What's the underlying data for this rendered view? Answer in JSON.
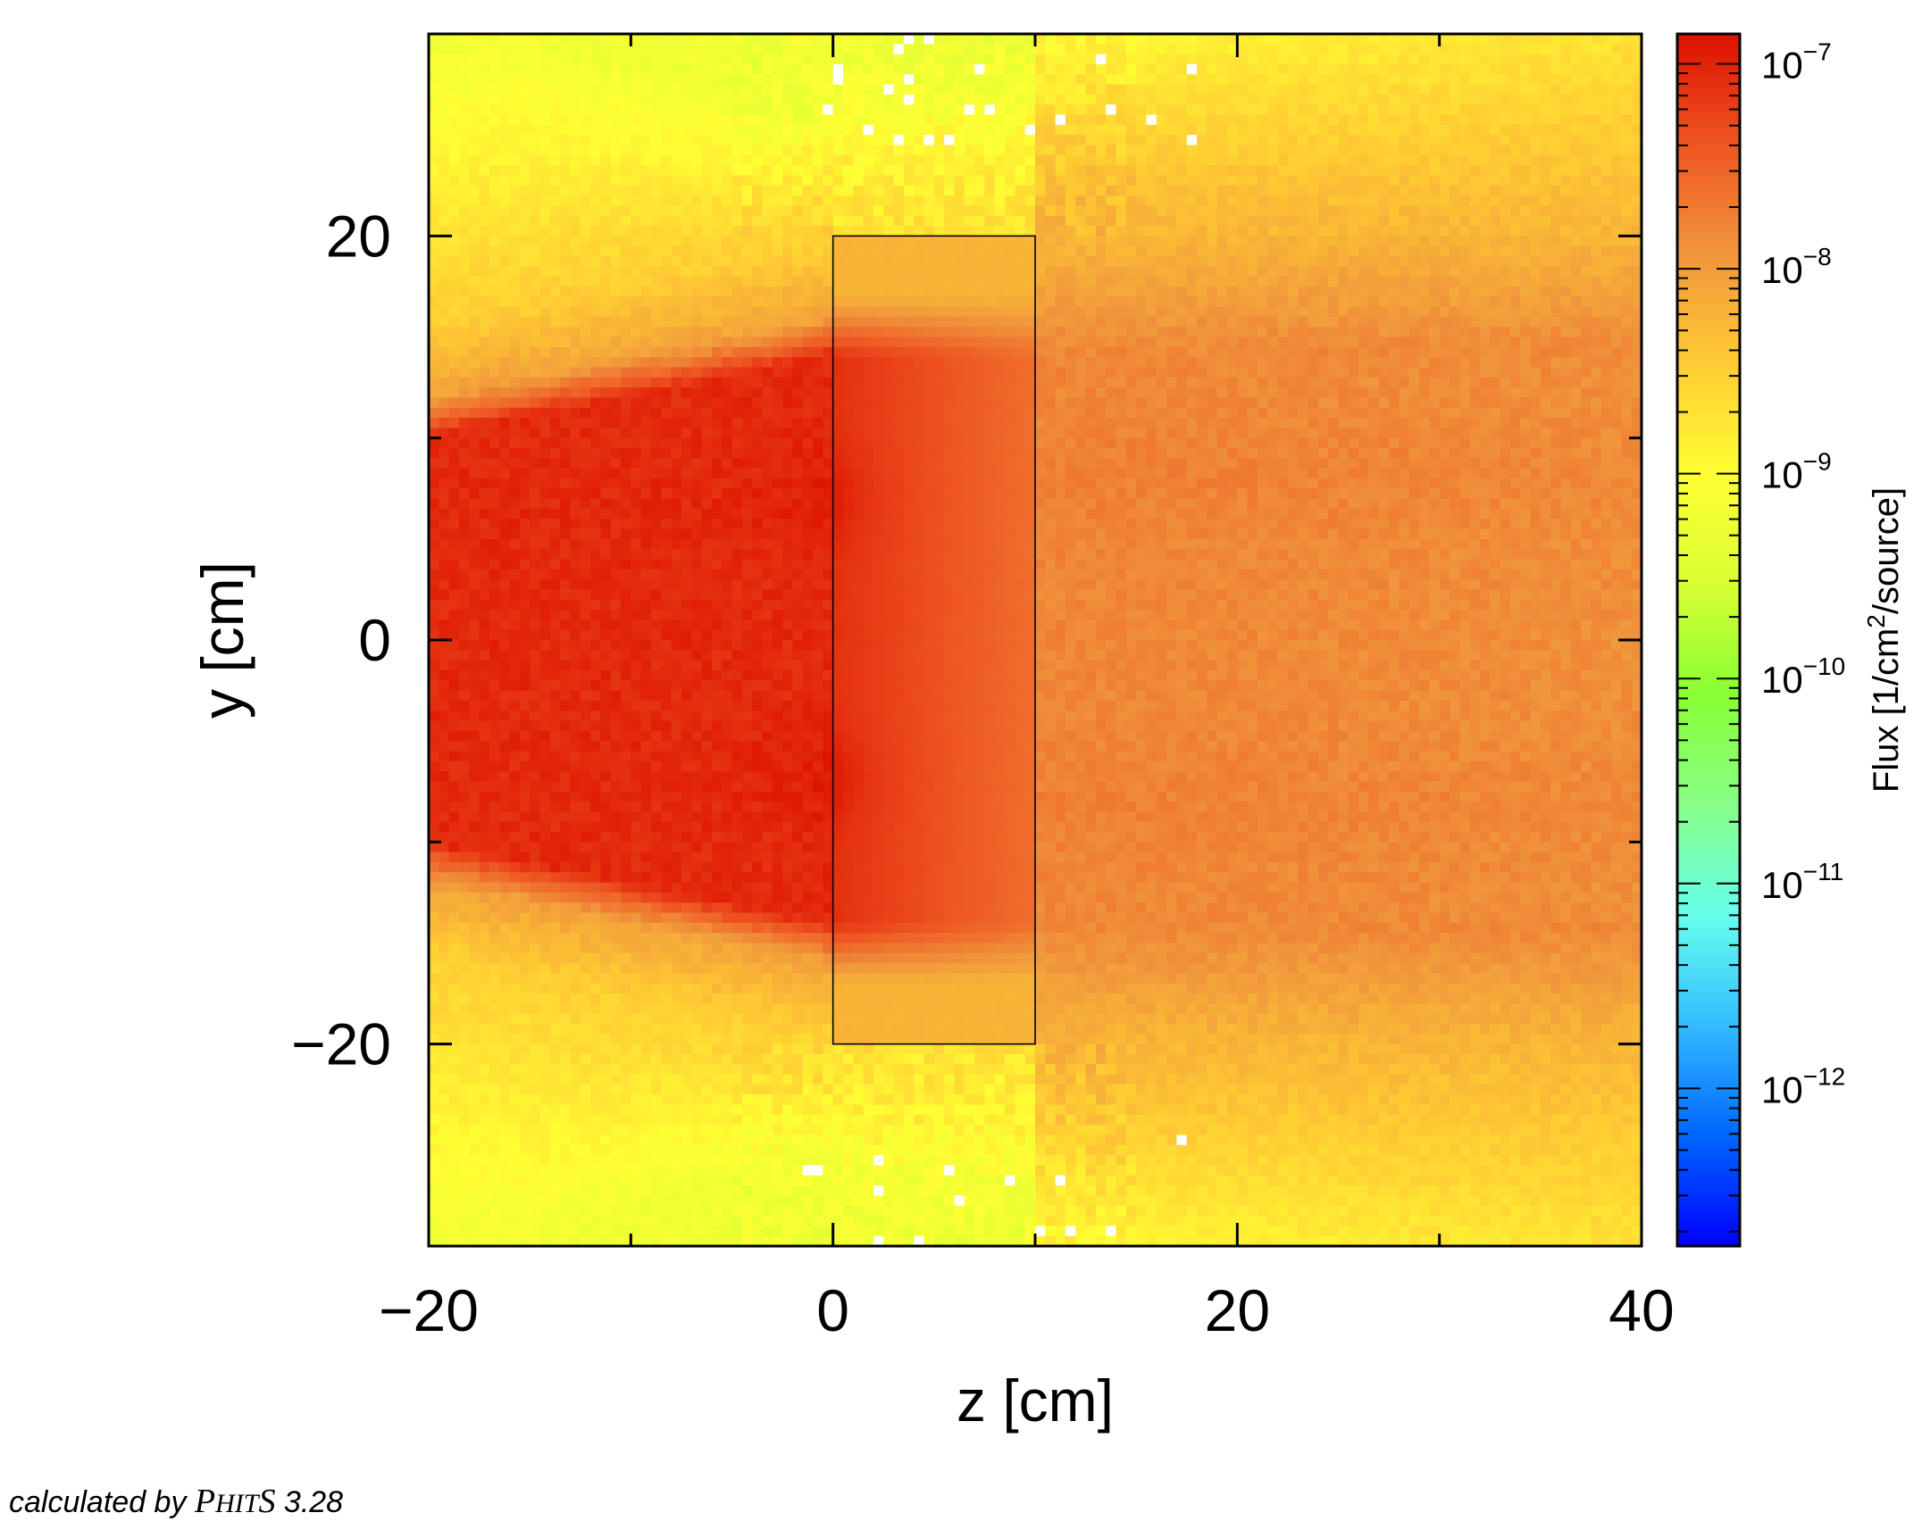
{
  "chart_data": {
    "type": "heatmap",
    "title": "",
    "xlabel": "z [cm]",
    "ylabel": "y [cm]",
    "xlim": [
      -20,
      40
    ],
    "ylim": [
      -30,
      30
    ],
    "x_ticks": [
      {
        "value": -20,
        "label": "−20"
      },
      {
        "value": 0,
        "label": "0"
      },
      {
        "value": 20,
        "label": "20"
      },
      {
        "value": 40,
        "label": "40"
      }
    ],
    "y_ticks": [
      {
        "value": 20,
        "label": "20"
      },
      {
        "value": 0,
        "label": "0"
      },
      {
        "value": -20,
        "label": "−20"
      }
    ],
    "colorbar": {
      "label": "Flux [1/cm²/source]",
      "scale": "log",
      "range": [
        1.7e-13,
        1.4e-07
      ],
      "ticks": [
        {
          "value": 1e-07,
          "base": "10",
          "exp": "−7"
        },
        {
          "value": 1e-08,
          "base": "10",
          "exp": "−8"
        },
        {
          "value": 1e-09,
          "base": "10",
          "exp": "−9"
        },
        {
          "value": 1e-10,
          "base": "10",
          "exp": "−10"
        },
        {
          "value": 1e-11,
          "base": "10",
          "exp": "−11"
        },
        {
          "value": 1e-12,
          "base": "10",
          "exp": "−12"
        }
      ],
      "colors": [
        "#0000ff",
        "#0066ff",
        "#33bbff",
        "#66ffee",
        "#88ff88",
        "#88ff33",
        "#d8ff33",
        "#ffff33",
        "#ffcc33",
        "#f0963c",
        "#ee5522",
        "#dd1100"
      ]
    },
    "grid": "x 120 × y 120 bins, white cells = no tally",
    "geometry_box": {
      "z": [
        0,
        10
      ],
      "y": [
        -20,
        20
      ]
    },
    "flux_description": {
      "beam_region_left": {
        "z": [
          -20,
          0
        ],
        "y_half_width_at_z_minus_20": 10,
        "y_half_width_at_z_0": 14,
        "flux": 9e-08
      },
      "hot_spots": [
        {
          "z": 0.5,
          "y": 7,
          "flux": 1.3e-07
        },
        {
          "z": 0.5,
          "y": -7,
          "flux": 1.3e-07
        }
      ],
      "inside_box": {
        "core_half_width": 14,
        "flux_core_entry": 8e-08,
        "flux_core_exit": 2.5e-08,
        "flux_edge": 6e-09
      },
      "downstream": {
        "z": [
          10,
          40
        ],
        "flux_axis": 1.6e-08,
        "half_width": 14
      },
      "background": {
        "flux_near_beam": 6e-09,
        "flux_far_top_bottom": 1e-09,
        "flux_far_minimum": 4e-10
      }
    }
  },
  "credit": {
    "prefix": "calculated by ",
    "code_first": "P",
    "code_mid": "HIT",
    "code_s": "S",
    "version": " 3.28"
  }
}
